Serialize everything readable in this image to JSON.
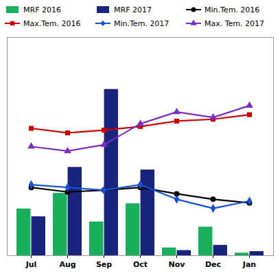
{
  "chart_data": {
    "type": "bar",
    "categories": [
      "Jul",
      "Aug",
      "Sep",
      "Oct",
      "Nov",
      "Dec",
      "Jan"
    ],
    "series": [
      {
        "name": "MRF 2016",
        "type": "bar",
        "color": "#1aaf5d",
        "values": [
          90,
          120,
          65,
          100,
          15,
          55,
          5
        ]
      },
      {
        "name": "MRF 2017",
        "type": "bar",
        "color": "#1a237e",
        "values": [
          75,
          170,
          320,
          165,
          10,
          20,
          8
        ]
      },
      {
        "name": "Min.Tem. 2016",
        "type": "line",
        "axis": "y2",
        "color": "#000000",
        "marker": "circle",
        "values": [
          25.5,
          25.0,
          25.2,
          25.5,
          24.8,
          24.2,
          23.8
        ]
      },
      {
        "name": "Max.Tem. 2016",
        "type": "line",
        "axis": "y2",
        "color": "#cc0000",
        "marker": "square",
        "values": [
          32.0,
          31.5,
          31.8,
          32.2,
          32.8,
          33.0,
          33.5
        ]
      },
      {
        "name": "Min.Tem. 2017",
        "type": "line",
        "axis": "y2",
        "color": "#1a50d4",
        "marker": "diamond",
        "values": [
          25.8,
          25.5,
          25.2,
          25.8,
          24.2,
          23.2,
          24.0
        ]
      },
      {
        "name": "Max. Tem. 2017",
        "type": "line",
        "axis": "y2",
        "color": "#7b2fbe",
        "marker": "triangle",
        "values": [
          30.0,
          29.5,
          30.2,
          32.5,
          33.8,
          33.2,
          34.5
        ]
      }
    ],
    "ylim": [
      0,
      420
    ],
    "yticks": [],
    "y2lim": [
      18,
      42
    ],
    "y2ticks": [],
    "tick_labels": "x",
    "grid": false,
    "legend": "top"
  }
}
